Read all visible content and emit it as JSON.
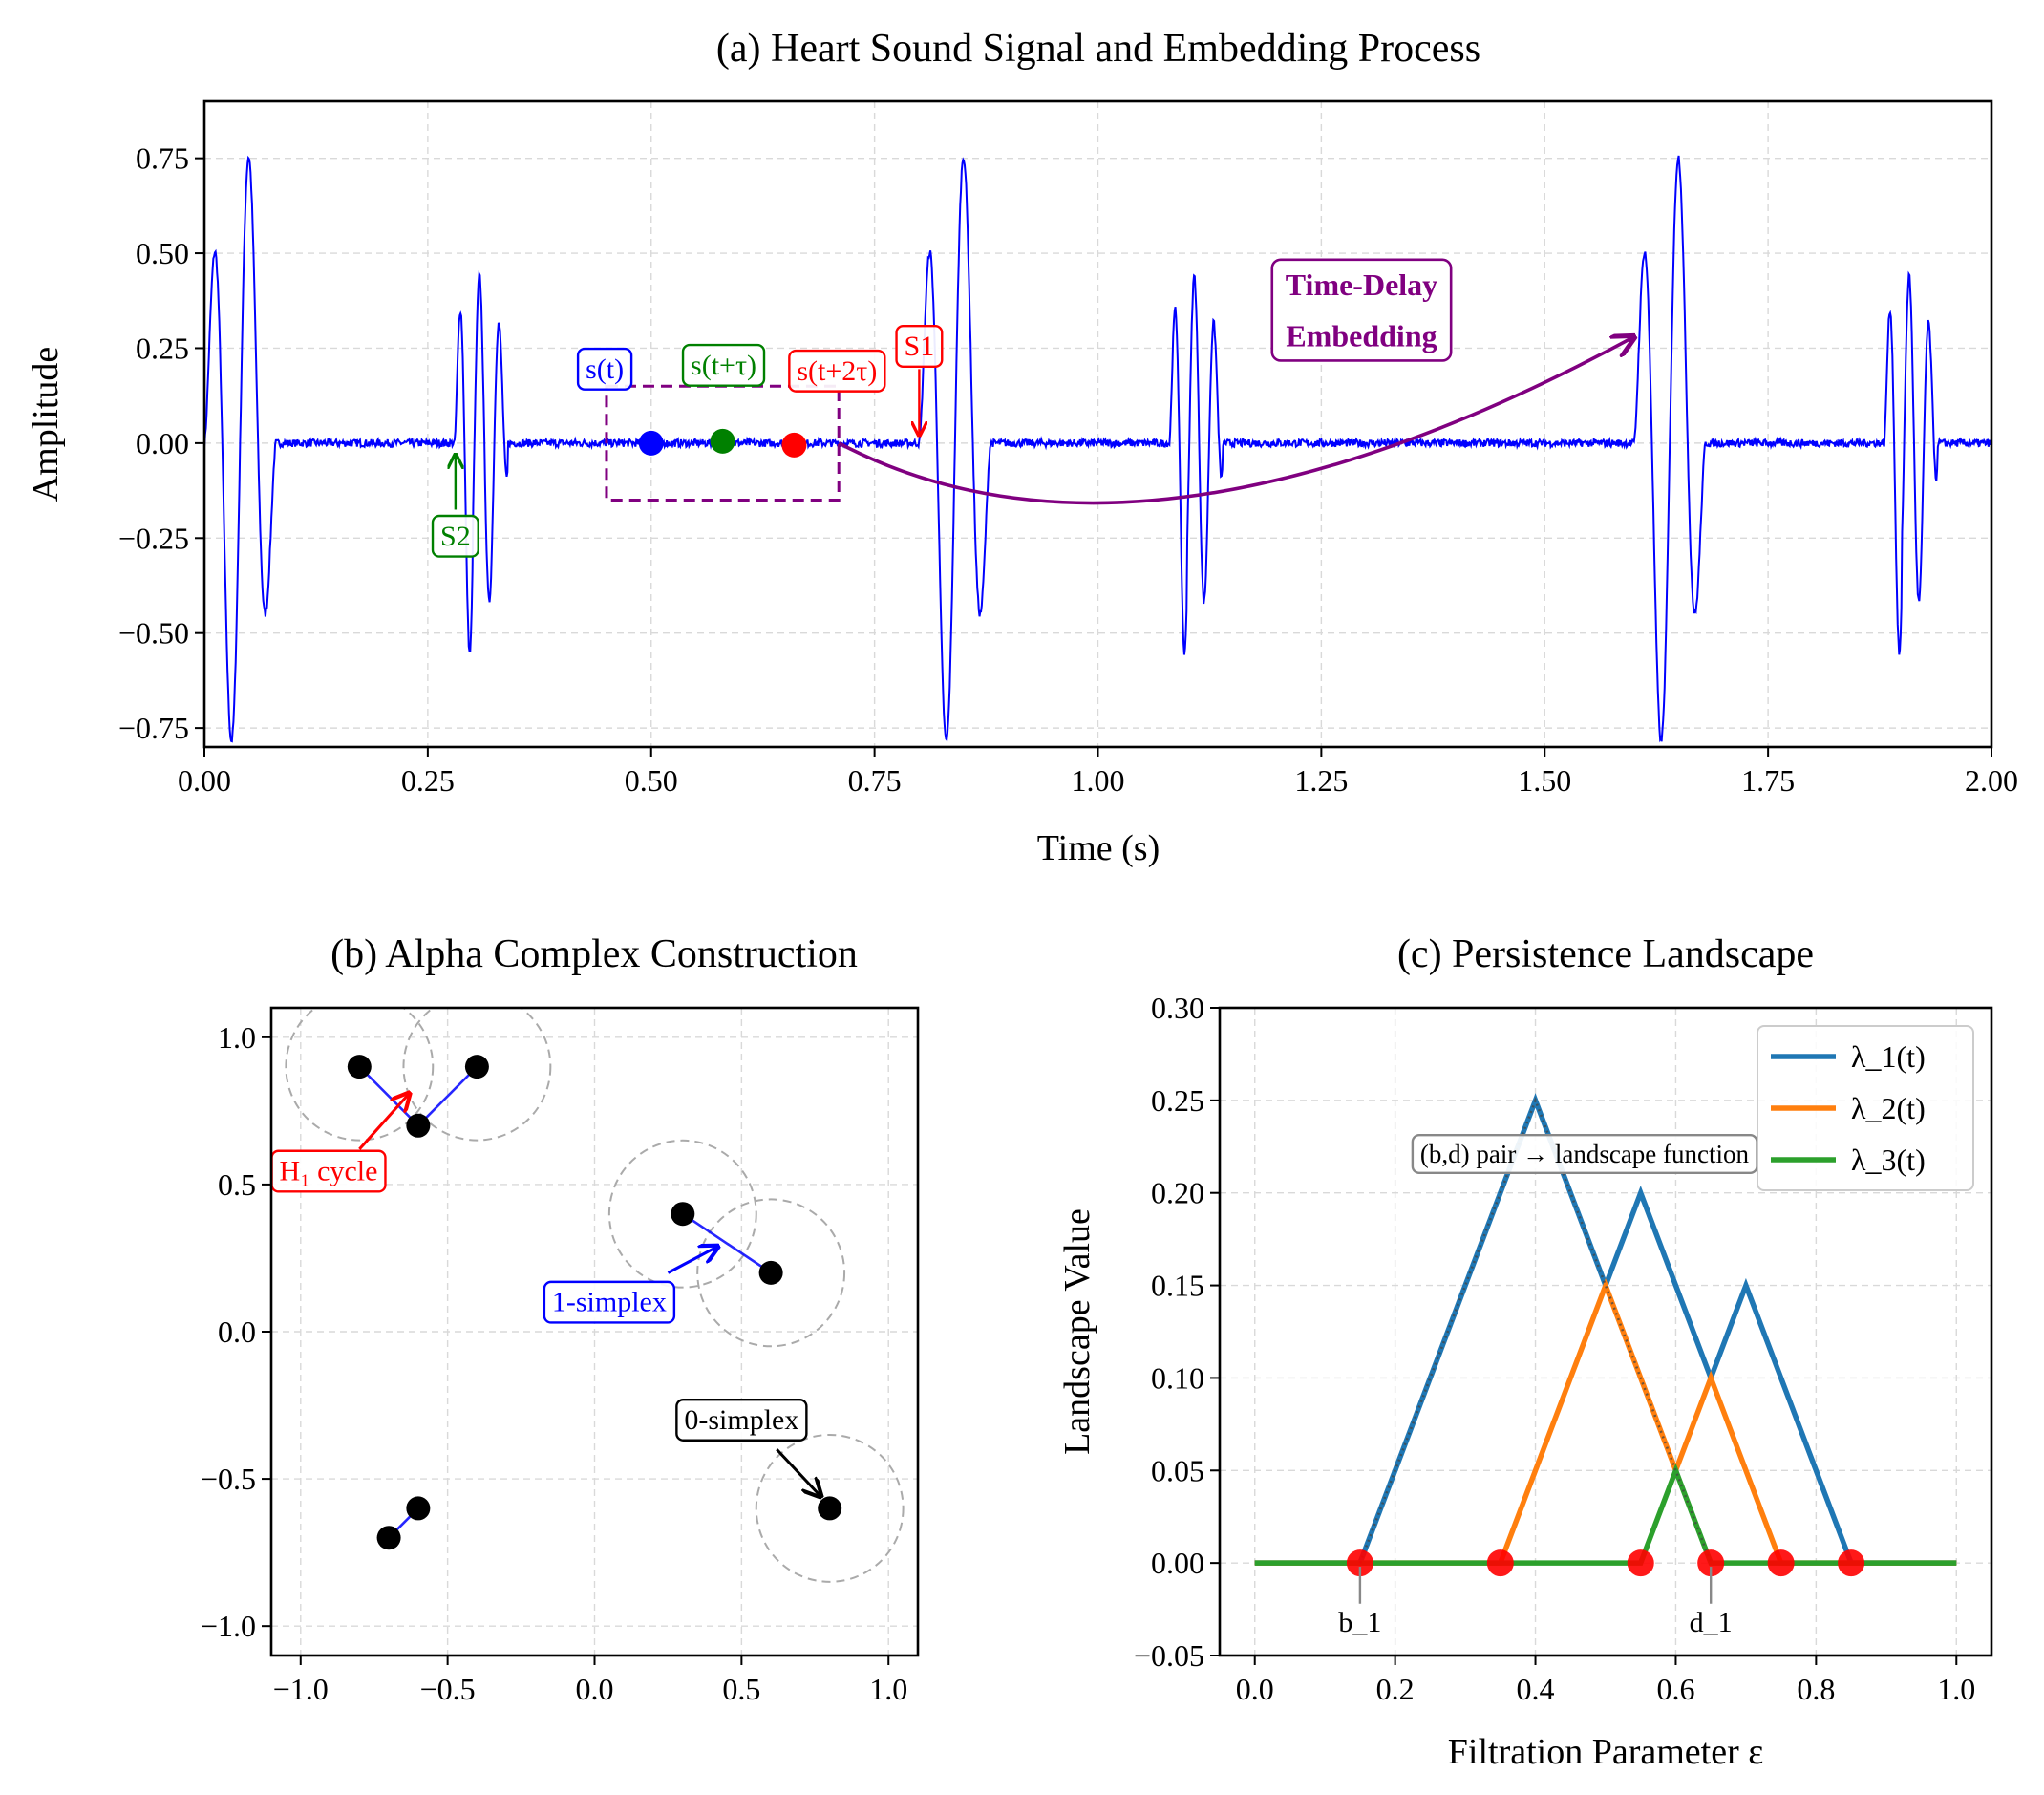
{
  "colors": {
    "signal": "#0000ff",
    "blue": "#1f77b4",
    "orange": "#ff7f0e",
    "green": "#2ca02c",
    "purple": "#800080",
    "red": "#ff0000",
    "annot_green": "#008000",
    "gray": "#999999"
  },
  "chart_data": [
    {
      "type": "line",
      "title": "(a) Heart Sound Signal and Embedding Process",
      "xlabel": "Time (s)",
      "ylabel": "Amplitude",
      "xlim": [
        0.0,
        2.0
      ],
      "ylim": [
        -0.8,
        0.9
      ],
      "xticks": [
        "0.00",
        "0.25",
        "0.50",
        "0.75",
        "1.00",
        "1.25",
        "1.50",
        "1.75",
        "2.00"
      ],
      "yticks": [
        "0.75",
        "0.50",
        "0.25",
        "0.00",
        "−0.25",
        "−0.50",
        "−0.75"
      ],
      "xtick_values": [
        0,
        0.25,
        0.5,
        0.75,
        1.0,
        1.25,
        1.5,
        1.75,
        2.0
      ],
      "ytick_values": [
        0.75,
        0.5,
        0.25,
        0,
        -0.25,
        -0.5,
        -0.75
      ],
      "grid": true,
      "signal": {
        "name": "heart sound",
        "s1_onsets": [
          0.0,
          0.8,
          1.6
        ],
        "s1_peak_amplitude": 0.87,
        "s2_onsets": [
          0.28,
          1.08,
          1.88
        ],
        "s2_peak_amplitude": 0.63,
        "noise_amplitude": 0.01
      },
      "embedding_points": [
        {
          "label": "s(t)",
          "x": 0.5,
          "y": 0.0
        },
        {
          "label": "s(t+τ)",
          "x": 0.58,
          "y": 0.005
        },
        {
          "label": "s(t+2τ)",
          "x": 0.66,
          "y": -0.005
        }
      ],
      "embedding_window": {
        "x0": 0.45,
        "x1": 0.71,
        "y0": -0.15,
        "y1": 0.15
      },
      "annotations": {
        "s2_label": "S2",
        "s1_label": "S1",
        "embedding_label_line1": "Time-Delay",
        "embedding_label_line2": "Embedding"
      }
    },
    {
      "type": "scatter",
      "title": "(b) Alpha Complex Construction",
      "xlim": [
        -1.1,
        1.1
      ],
      "ylim": [
        -1.1,
        1.1
      ],
      "xticks": [
        "−1.0",
        "−0.5",
        "0.0",
        "0.5",
        "1.0"
      ],
      "yticks": [
        "1.0",
        "0.5",
        "0.0",
        "−0.5",
        "−1.0"
      ],
      "xtick_values": [
        -1.0,
        -0.5,
        0,
        0.5,
        1.0
      ],
      "ytick_values": [
        1.0,
        0.5,
        0,
        -0.5,
        -1.0
      ],
      "grid": true,
      "points": [
        [
          -0.8,
          0.9
        ],
        [
          -0.4,
          0.9
        ],
        [
          -0.6,
          0.7
        ],
        [
          0.3,
          0.4
        ],
        [
          0.6,
          0.2
        ],
        [
          0.8,
          -0.6
        ],
        [
          -0.7,
          -0.7
        ],
        [
          -0.6,
          -0.6
        ]
      ],
      "edges": [
        [
          0,
          2
        ],
        [
          1,
          2
        ],
        [
          3,
          4
        ],
        [
          6,
          7
        ]
      ],
      "circles": [
        {
          "center": 0,
          "r": 0.25
        },
        {
          "center": 1,
          "r": 0.25
        },
        {
          "center": 3,
          "r": 0.25
        },
        {
          "center": 4,
          "r": 0.25
        },
        {
          "center": 5,
          "r": 0.25
        }
      ],
      "annotations": {
        "h1_label": "H₁ cycle",
        "one_simplex_label": "1-simplex",
        "zero_simplex_label": "0-simplex"
      }
    },
    {
      "type": "line",
      "title": "(c) Persistence Landscape",
      "xlabel": "Filtration Parameter ε",
      "ylabel": "Landscape Value",
      "xlim": [
        -0.05,
        1.05
      ],
      "ylim": [
        -0.05,
        0.3
      ],
      "xticks": [
        "0.0",
        "0.2",
        "0.4",
        "0.6",
        "0.8",
        "1.0"
      ],
      "yticks": [
        "0.30",
        "0.25",
        "0.20",
        "0.15",
        "0.10",
        "0.05",
        "0.00",
        "−0.05"
      ],
      "xtick_values": [
        0,
        0.2,
        0.4,
        0.6,
        0.8,
        1.0
      ],
      "ytick_values": [
        0.3,
        0.25,
        0.2,
        0.15,
        0.1,
        0.05,
        0,
        -0.05
      ],
      "grid": true,
      "series": [
        {
          "name": "λ_1(t)",
          "x": [
            0,
            0.15,
            0.4,
            0.5,
            0.55,
            0.65,
            0.7,
            0.85,
            1.0
          ],
          "y": [
            0,
            0,
            0.25,
            0.15,
            0.2,
            0.1,
            0.15,
            0,
            0
          ]
        },
        {
          "name": "λ_2(t)",
          "x": [
            0,
            0.35,
            0.5,
            0.6,
            0.65,
            0.75,
            1.0
          ],
          "y": [
            0,
            0,
            0.15,
            0.05,
            0.1,
            0,
            0
          ]
        },
        {
          "name": "λ_3(t)",
          "x": [
            0,
            0.55,
            0.6,
            0.65,
            1.0
          ],
          "y": [
            0,
            0,
            0.05,
            0,
            0
          ]
        }
      ],
      "dotted_overlay": {
        "x": [
          0.15,
          0.4,
          0.65
        ],
        "y": [
          0,
          0.25,
          0
        ]
      },
      "birth_death_points": [
        0.15,
        0.35,
        0.55,
        0.65,
        0.75,
        0.85
      ],
      "legend_location": "upper right",
      "annotations": {
        "pair_text": "(b,d) pair → landscape function",
        "b1_label": "b_1",
        "d1_label": "d_1",
        "b1_x": 0.15,
        "d1_x": 0.65
      }
    }
  ]
}
